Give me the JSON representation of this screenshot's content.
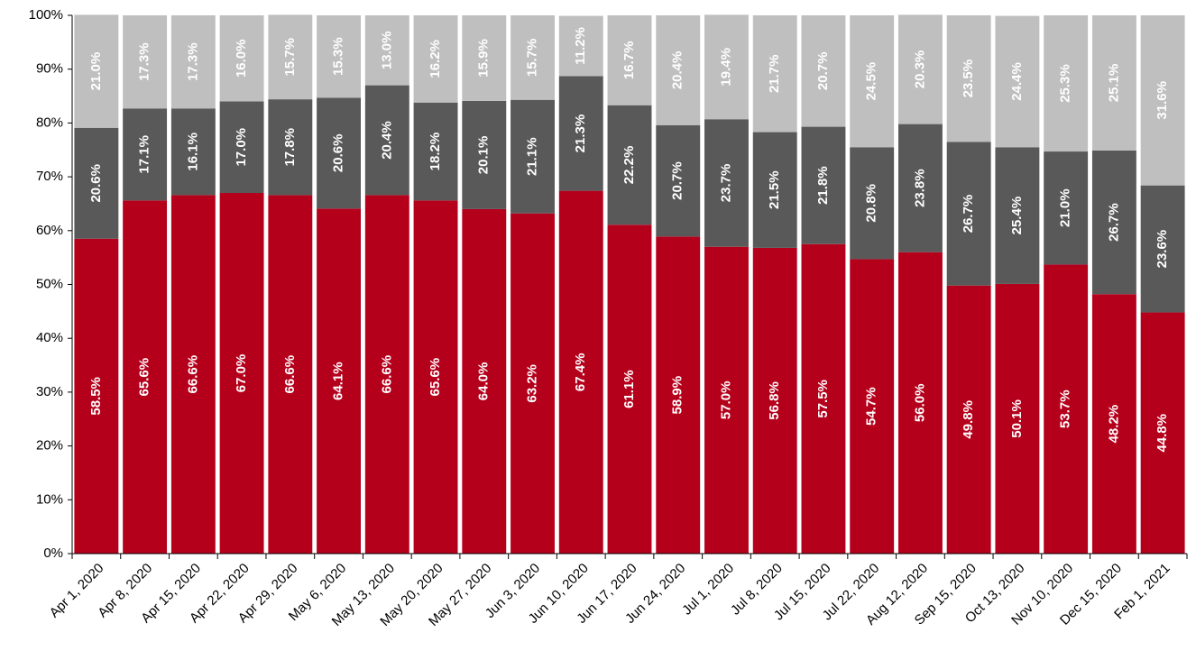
{
  "chart_data": {
    "type": "stacked-bar",
    "categories": [
      "Apr 1, 2020",
      "Apr 8, 2020",
      "Apr 15, 2020",
      "Apr 22, 2020",
      "Apr 29, 2020",
      "May 6, 2020",
      "May 13, 2020",
      "May 20, 2020",
      "May 27, 2020",
      "Jun 3, 2020",
      "Jun 10, 2020",
      "Jun 17, 2020",
      "Jun 24, 2020",
      "Jul 1, 2020",
      "Jul 8, 2020",
      "Jul 15, 2020",
      "Jul 22, 2020",
      "Aug 12, 2020",
      "Sep 15, 2020",
      "Oct 13, 2020",
      "Nov 10, 2020",
      "Dec 15, 2020",
      "Feb 1, 2021"
    ],
    "series": [
      {
        "color": "#b5001c",
        "values": [
          58.5,
          65.6,
          66.6,
          67.0,
          66.6,
          64.1,
          66.6,
          65.6,
          64.0,
          63.2,
          67.4,
          61.1,
          58.9,
          57.0,
          56.8,
          57.5,
          54.7,
          56.0,
          49.8,
          50.1,
          53.7,
          48.2,
          44.8
        ],
        "value_labels": [
          "58.5%",
          "65.6%",
          "66.6%",
          "67.0%",
          "66.6%",
          "64.1%",
          "66.6%",
          "65.6%",
          "64.0%",
          "63.2%",
          "67.4%",
          "61.1%",
          "58.9%",
          "57.0%",
          "56.8%",
          "57.5%",
          "54.7%",
          "56.0%",
          "49.8%",
          "50.1%",
          "53.7%",
          "48.2%",
          "44.8%"
        ]
      },
      {
        "color": "#595959",
        "values": [
          20.6,
          17.1,
          16.1,
          17.0,
          17.8,
          20.6,
          20.4,
          18.2,
          20.1,
          21.1,
          21.3,
          22.2,
          20.7,
          23.7,
          21.5,
          21.8,
          20.8,
          23.8,
          26.7,
          25.4,
          21.0,
          26.7,
          23.6
        ],
        "value_labels": [
          "20.6%",
          "17.1%",
          "16.1%",
          "17.0%",
          "17.8%",
          "20.6%",
          "20.4%",
          "18.2%",
          "20.1%",
          "21.1%",
          "21.3%",
          "22.2%",
          "20.7%",
          "23.7%",
          "21.5%",
          "21.8%",
          "20.8%",
          "23.8%",
          "26.7%",
          "25.4%",
          "21.0%",
          "26.7%",
          "23.6%"
        ]
      },
      {
        "color": "#bfbfbf",
        "values": [
          21.0,
          17.3,
          17.3,
          16.0,
          15.7,
          15.3,
          13.0,
          16.2,
          15.9,
          15.7,
          11.2,
          16.7,
          20.4,
          19.4,
          21.7,
          20.7,
          24.5,
          20.3,
          23.5,
          24.4,
          25.3,
          25.1,
          31.6
        ],
        "value_labels": [
          "21.0%",
          "17.3%",
          "17.3%",
          "16.0%",
          "15.7%",
          "15.3%",
          "13.0%",
          "16.2%",
          "15.9%",
          "15.7%",
          "11.2%",
          "16.7%",
          "20.4%",
          "19.4%",
          "21.7%",
          "20.7%",
          "24.5%",
          "20.3%",
          "23.5%",
          "24.4%",
          "25.3%",
          "25.1%",
          "31.6%"
        ]
      }
    ],
    "ylim": [
      0,
      100
    ],
    "yticks": [
      {
        "value": 0,
        "label": "0%"
      },
      {
        "value": 10,
        "label": "10%"
      },
      {
        "value": 20,
        "label": "20%"
      },
      {
        "value": 30,
        "label": "30%"
      },
      {
        "value": 40,
        "label": "40%"
      },
      {
        "value": 50,
        "label": "50%"
      },
      {
        "value": 60,
        "label": "60%"
      },
      {
        "value": 70,
        "label": "70%"
      },
      {
        "value": 80,
        "label": "80%"
      },
      {
        "value": 90,
        "label": "90%"
      },
      {
        "value": 100,
        "label": "100%"
      }
    ]
  }
}
